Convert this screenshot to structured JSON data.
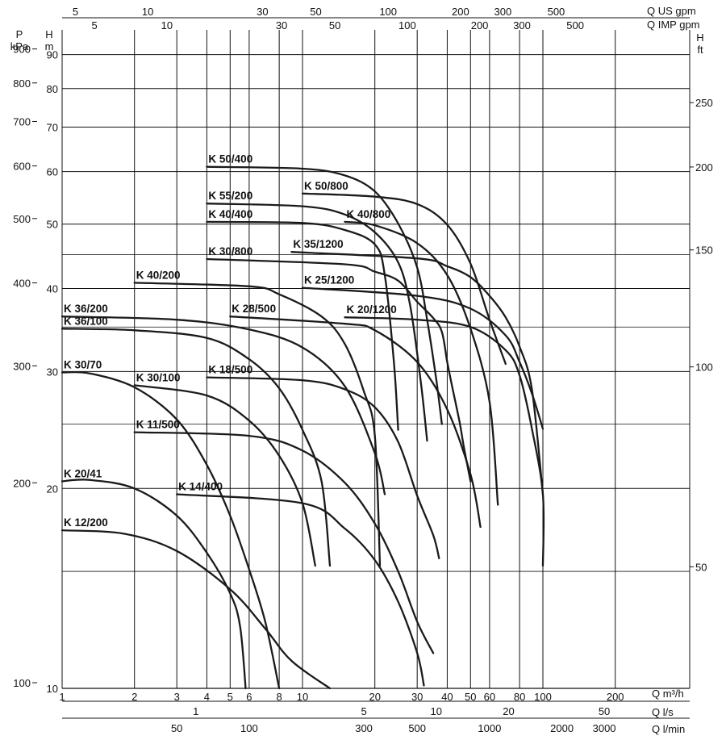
{
  "chart_data": {
    "type": "line",
    "scale": "log-log",
    "grid": true,
    "axes": {
      "q_m3h": {
        "label": "Q m³/h",
        "range": [
          1,
          300
        ],
        "ticks": [
          1,
          2,
          3,
          4,
          5,
          6,
          8,
          10,
          20,
          30,
          40,
          50,
          60,
          80,
          100,
          200
        ]
      },
      "h_m": {
        "label": "H m",
        "range": [
          10,
          100
        ],
        "ticks": [
          10,
          20,
          30,
          40,
          50,
          60,
          70,
          80,
          90
        ]
      },
      "p_kpa": {
        "label": "P kPa",
        "ticks": [
          100,
          200,
          300,
          400,
          500,
          600,
          700,
          800,
          900
        ]
      },
      "h_ft": {
        "label": "H ft",
        "ticks": [
          50,
          100,
          150,
          200,
          250
        ]
      },
      "q_usgpm": {
        "label": "Q US gpm",
        "ticks": [
          5,
          10,
          30,
          50,
          100,
          200,
          300,
          500
        ]
      },
      "q_impgpm": {
        "label": "Q IMP gpm",
        "ticks": [
          5,
          10,
          30,
          50,
          100,
          200,
          300,
          500
        ]
      },
      "q_ls": {
        "label": "Q l/s",
        "ticks": [
          1,
          5,
          10,
          20,
          50
        ]
      },
      "q_lmin": {
        "label": "Q l/min",
        "ticks": [
          50,
          100,
          300,
          500,
          1000,
          2000,
          3000
        ]
      }
    },
    "series": [
      {
        "name": "K 12/200",
        "points": [
          [
            1,
            17.3
          ],
          [
            1.8,
            17.1
          ],
          [
            3,
            16.1
          ],
          [
            5,
            14.1
          ],
          [
            7,
            12.3
          ],
          [
            9,
            11.0
          ],
          [
            13,
            10.0
          ]
        ]
      },
      {
        "name": "K 20/41",
        "points": [
          [
            1,
            20.5
          ],
          [
            1.3,
            20.6
          ],
          [
            2,
            20
          ],
          [
            3,
            18.2
          ],
          [
            4,
            16
          ],
          [
            5,
            13.9
          ],
          [
            5.5,
            12.4
          ],
          [
            5.8,
            10
          ]
        ]
      },
      {
        "name": "K 30/70",
        "points": [
          [
            1,
            29.9
          ],
          [
            1.3,
            29.8
          ],
          [
            2,
            28.4
          ],
          [
            3,
            25.4
          ],
          [
            4,
            21.7
          ],
          [
            5,
            18.2
          ],
          [
            6,
            15.1
          ],
          [
            7,
            12.6
          ],
          [
            8,
            10
          ]
        ]
      },
      {
        "name": "K 14/400",
        "points": [
          [
            3,
            19.6
          ],
          [
            10,
            19.0
          ],
          [
            15,
            17.4
          ],
          [
            20,
            15.6
          ],
          [
            25,
            13.5
          ],
          [
            30,
            11.3
          ],
          [
            32,
            10.1
          ]
        ]
      },
      {
        "name": "K 30/100",
        "points": [
          [
            2,
            28.6
          ],
          [
            4,
            27.6
          ],
          [
            6,
            25.3
          ],
          [
            8,
            22.4
          ],
          [
            10,
            19.0
          ],
          [
            11.3,
            15.3
          ]
        ]
      },
      {
        "name": "K 11/500",
        "points": [
          [
            2,
            24.3
          ],
          [
            6,
            24.0
          ],
          [
            10,
            22.8
          ],
          [
            15,
            20.4
          ],
          [
            20,
            17.7
          ],
          [
            25,
            15.0
          ],
          [
            30,
            12.6
          ],
          [
            35,
            11.3
          ]
        ]
      },
      {
        "name": "K 36/100",
        "points": [
          [
            1,
            34.8
          ],
          [
            2,
            34.6
          ],
          [
            4,
            33.7
          ],
          [
            6,
            31.3
          ],
          [
            8,
            28.3
          ],
          [
            10,
            24.5
          ],
          [
            12,
            20.5
          ],
          [
            13,
            15.3
          ]
        ]
      },
      {
        "name": "K 36/200",
        "points": [
          [
            1,
            36.3
          ],
          [
            3,
            35.9
          ],
          [
            6,
            34.7
          ],
          [
            10,
            32.6
          ],
          [
            15,
            28.5
          ],
          [
            20,
            22.6
          ],
          [
            22,
            19.6
          ]
        ]
      },
      {
        "name": "K 18/500",
        "points": [
          [
            4,
            29.4
          ],
          [
            10,
            29.1
          ],
          [
            15,
            28.2
          ],
          [
            20,
            26.5
          ],
          [
            25,
            23.5
          ],
          [
            30,
            19.5
          ],
          [
            35,
            17.0
          ],
          [
            37,
            15.7
          ]
        ]
      },
      {
        "name": "K 40/200",
        "points": [
          [
            2,
            40.8
          ],
          [
            6,
            40.3
          ],
          [
            8,
            39.2
          ],
          [
            12,
            36.3
          ],
          [
            15,
            33.0
          ],
          [
            18,
            28.0
          ],
          [
            20,
            24.0
          ],
          [
            21,
            15.3
          ]
        ]
      },
      {
        "name": "K 28/500",
        "points": [
          [
            5,
            36.3
          ],
          [
            15,
            35.4
          ],
          [
            20,
            34.6
          ],
          [
            30,
            31.0
          ],
          [
            40,
            26.3
          ],
          [
            50,
            21.0
          ],
          [
            55,
            17.5
          ]
        ]
      },
      {
        "name": "K 20/1200",
        "points": [
          [
            15,
            36.2
          ],
          [
            30,
            35.9
          ],
          [
            50,
            35.0
          ],
          [
            70,
            32.3
          ],
          [
            80,
            29.6
          ],
          [
            90,
            24.6
          ],
          [
            100,
            19.6
          ],
          [
            100,
            15.3
          ]
        ]
      },
      {
        "name": "K 30/800",
        "points": [
          [
            4,
            44.3
          ],
          [
            15,
            43.5
          ],
          [
            20,
            42.4
          ],
          [
            25,
            41.1
          ],
          [
            30,
            38.2
          ],
          [
            35,
            36.1
          ],
          [
            38,
            34.4
          ],
          [
            40,
            31.0
          ],
          [
            42,
            28.4
          ],
          [
            45,
            25.2
          ],
          [
            47,
            23.0
          ],
          [
            50,
            20.5
          ]
        ]
      },
      {
        "name": "K 25/1200",
        "points": [
          [
            10,
            40.1
          ],
          [
            30,
            39.0
          ],
          [
            50,
            37.3
          ],
          [
            70,
            34.0
          ],
          [
            80,
            31.0
          ],
          [
            90,
            27.8
          ],
          [
            100,
            24.6
          ]
        ]
      },
      {
        "name": "K 35/1200",
        "points": [
          [
            9,
            45.4
          ],
          [
            30,
            44.4
          ],
          [
            40,
            43.2
          ],
          [
            50,
            41.6
          ],
          [
            60,
            39.0
          ],
          [
            70,
            36.2
          ],
          [
            80,
            32.7
          ],
          [
            90,
            28.2
          ],
          [
            100,
            19.6
          ]
        ]
      },
      {
        "name": "K 40/400",
        "points": [
          [
            4,
            50.4
          ],
          [
            10,
            50.2
          ],
          [
            15,
            49.0
          ],
          [
            20,
            46.6
          ],
          [
            22,
            41.9
          ],
          [
            24,
            31.0
          ],
          [
            25,
            24.5
          ]
        ]
      },
      {
        "name": "K 55/200",
        "points": [
          [
            4,
            53.7
          ],
          [
            10,
            53.2
          ],
          [
            15,
            51.7
          ],
          [
            20,
            48.6
          ],
          [
            25,
            43.8
          ],
          [
            28,
            37.8
          ],
          [
            31,
            29.1
          ],
          [
            33,
            23.6
          ]
        ]
      },
      {
        "name": "K 50/400",
        "points": [
          [
            4,
            61.0
          ],
          [
            10,
            60.6
          ],
          [
            15,
            59.2
          ],
          [
            20,
            56.0
          ],
          [
            25,
            50.1
          ],
          [
            30,
            43.0
          ],
          [
            33,
            35.9
          ],
          [
            36,
            29.2
          ],
          [
            38,
            25.0
          ]
        ]
      },
      {
        "name": "K 40/800",
        "points": [
          [
            15,
            50.4
          ],
          [
            20,
            49.8
          ],
          [
            30,
            46.8
          ],
          [
            40,
            41.9
          ],
          [
            50,
            34.8
          ],
          [
            60,
            27.0
          ],
          [
            65,
            18.9
          ]
        ]
      },
      {
        "name": "K 50/800",
        "points": [
          [
            10,
            55.6
          ],
          [
            20,
            55.0
          ],
          [
            30,
            53.6
          ],
          [
            40,
            49.9
          ],
          [
            50,
            43.6
          ],
          [
            60,
            35.9
          ],
          [
            70,
            30.8
          ]
        ]
      }
    ]
  }
}
